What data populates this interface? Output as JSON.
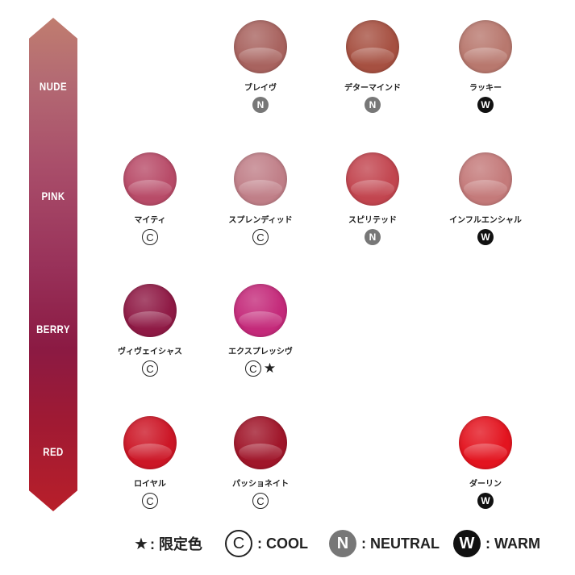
{
  "bands": [
    {
      "label": "NUDE"
    },
    {
      "label": "PINK"
    },
    {
      "label": "BERRY"
    },
    {
      "label": "RED"
    }
  ],
  "swatches": [
    {
      "name": "ブレイヴ",
      "color": "#a8635f",
      "tone": "N",
      "limited": false
    },
    {
      "name": "デターマインド",
      "color": "#a65041",
      "tone": "N",
      "limited": false
    },
    {
      "name": "ラッキー",
      "color": "#b8786e",
      "tone": "W",
      "limited": false
    },
    {
      "name": "マイティ",
      "color": "#b84b68",
      "tone": "C",
      "limited": false
    },
    {
      "name": "スプレンディッド",
      "color": "#c07f88",
      "tone": "C",
      "limited": false
    },
    {
      "name": "スピリテッド",
      "color": "#c2454f",
      "tone": "N",
      "limited": false
    },
    {
      "name": "インフルエンシャル",
      "color": "#c47a7a",
      "tone": "W",
      "limited": false
    },
    {
      "name": "ヴィヴェイシャス",
      "color": "#8f1a45",
      "tone": "C",
      "limited": false
    },
    {
      "name": "エクスプレッシヴ",
      "color": "#c42a7a",
      "tone": "C",
      "limited": true
    },
    {
      "name": "ロイヤル",
      "color": "#cc1626",
      "tone": "C",
      "limited": false
    },
    {
      "name": "パッショネイト",
      "color": "#a0162a",
      "tone": "C",
      "limited": false
    },
    {
      "name": "ダーリン",
      "color": "#e3141f",
      "tone": "W",
      "limited": false
    }
  ],
  "legend": {
    "limited_text": ": 限定色",
    "cool_letter": "C",
    "cool_text": ": COOL",
    "neutral_letter": "N",
    "neutral_text": ": NEUTRAL",
    "warm_letter": "W",
    "warm_text": ": WARM"
  }
}
